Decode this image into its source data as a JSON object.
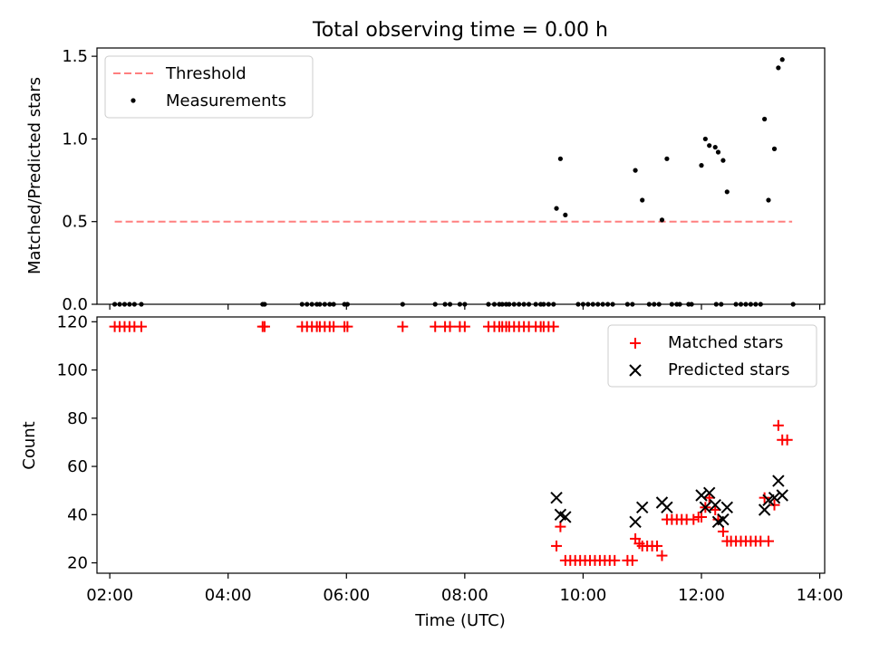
{
  "figure": {
    "title": "Total observing time = 0.00 h"
  },
  "colors": {
    "threshold": "#ff7f7f",
    "measurements": "#000000",
    "matched": "#ff0000",
    "predicted": "#000000"
  },
  "chart_data": [
    {
      "type": "scatter",
      "panel": "top",
      "ylabel": "Matched/Predicted stars",
      "xlabel": "",
      "ylim": [
        0,
        1.55
      ],
      "xlim": [
        "01:47",
        "14:05"
      ],
      "yticks": [
        0.0,
        0.5,
        1.0,
        1.5
      ],
      "yticklabels": [
        "0.0",
        "0.5",
        "1.0",
        "1.5"
      ],
      "grid": false,
      "legend": {
        "position": "upper-left",
        "entries": [
          "Threshold",
          "Measurements"
        ]
      },
      "threshold": {
        "name": "Threshold",
        "y": 0.5,
        "x_start": "02:05",
        "x_end": "13:32",
        "style": "dashed"
      },
      "series": [
        {
          "name": "Measurements",
          "marker": "dot",
          "points": [
            [
              "02:05",
              0
            ],
            [
              "02:10",
              0
            ],
            [
              "02:15",
              0
            ],
            [
              "02:20",
              0
            ],
            [
              "02:25",
              0
            ],
            [
              "02:32",
              0
            ],
            [
              "04:35",
              0
            ],
            [
              "04:37",
              0
            ],
            [
              "05:15",
              0
            ],
            [
              "05:20",
              0
            ],
            [
              "05:25",
              0
            ],
            [
              "05:30",
              0
            ],
            [
              "05:33",
              0
            ],
            [
              "05:38",
              0
            ],
            [
              "05:43",
              0
            ],
            [
              "05:47",
              0
            ],
            [
              "05:58",
              0
            ],
            [
              "06:01",
              0
            ],
            [
              "06:57",
              0
            ],
            [
              "07:30",
              0
            ],
            [
              "07:40",
              0
            ],
            [
              "07:45",
              0
            ],
            [
              "07:55",
              0
            ],
            [
              "08:00",
              0
            ],
            [
              "08:24",
              0
            ],
            [
              "08:30",
              0
            ],
            [
              "08:35",
              0
            ],
            [
              "08:38",
              0
            ],
            [
              "08:42",
              0
            ],
            [
              "08:45",
              0
            ],
            [
              "08:50",
              0
            ],
            [
              "08:55",
              0
            ],
            [
              "09:00",
              0
            ],
            [
              "09:05",
              0
            ],
            [
              "09:12",
              0
            ],
            [
              "09:17",
              0
            ],
            [
              "09:20",
              0
            ],
            [
              "09:25",
              0
            ],
            [
              "09:30",
              0
            ],
            [
              "09:55",
              0
            ],
            [
              "10:00",
              0
            ],
            [
              "10:05",
              0
            ],
            [
              "10:10",
              0
            ],
            [
              "10:15",
              0
            ],
            [
              "10:20",
              0
            ],
            [
              "10:25",
              0
            ],
            [
              "10:30",
              0
            ],
            [
              "10:45",
              0
            ],
            [
              "10:50",
              0
            ],
            [
              "11:07",
              0
            ],
            [
              "11:12",
              0
            ],
            [
              "11:17",
              0
            ],
            [
              "11:30",
              0
            ],
            [
              "11:35",
              0
            ],
            [
              "11:38",
              0
            ],
            [
              "11:47",
              0
            ],
            [
              "11:50",
              0
            ],
            [
              "12:15",
              0
            ],
            [
              "12:20",
              0
            ],
            [
              "12:35",
              0
            ],
            [
              "12:40",
              0
            ],
            [
              "12:45",
              0
            ],
            [
              "12:50",
              0
            ],
            [
              "12:55",
              0
            ],
            [
              "13:00",
              0
            ],
            [
              "13:33",
              0
            ],
            [
              "09:33",
              0.58
            ],
            [
              "09:37",
              0.88
            ],
            [
              "09:42",
              0.54
            ],
            [
              "10:53",
              0.81
            ],
            [
              "11:00",
              0.63
            ],
            [
              "11:20",
              0.51
            ],
            [
              "11:25",
              0.88
            ],
            [
              "12:00",
              0.84
            ],
            [
              "12:04",
              1.0
            ],
            [
              "12:08",
              0.96
            ],
            [
              "12:14",
              0.95
            ],
            [
              "12:17",
              0.92
            ],
            [
              "12:22",
              0.87
            ],
            [
              "12:26",
              0.68
            ],
            [
              "13:04",
              1.12
            ],
            [
              "13:08",
              0.63
            ],
            [
              "13:14",
              0.94
            ],
            [
              "13:18",
              1.43
            ],
            [
              "13:22",
              1.48
            ]
          ]
        }
      ]
    },
    {
      "type": "scatter",
      "panel": "bottom",
      "ylabel": "Count",
      "xlabel": "Time (UTC)",
      "ylim": [
        15.7,
        122
      ],
      "xlim": [
        "01:47",
        "14:05"
      ],
      "yticks": [
        20,
        40,
        60,
        80,
        100,
        120
      ],
      "yticklabels": [
        "20",
        "40",
        "60",
        "80",
        "100",
        "120"
      ],
      "xticks": [
        "02:00",
        "04:00",
        "06:00",
        "08:00",
        "10:00",
        "12:00",
        "14:00"
      ],
      "xticklabels": [
        "02:00",
        "04:00",
        "06:00",
        "08:00",
        "10:00",
        "12:00",
        "14:00"
      ],
      "grid": false,
      "legend": {
        "position": "upper-right",
        "entries": [
          "Matched stars",
          "Predicted stars"
        ]
      },
      "series": [
        {
          "name": "Matched stars",
          "marker": "plus",
          "points": [
            [
              "02:05",
              118
            ],
            [
              "02:10",
              118
            ],
            [
              "02:15",
              118
            ],
            [
              "02:20",
              118
            ],
            [
              "02:25",
              118
            ],
            [
              "02:32",
              118
            ],
            [
              "04:35",
              118
            ],
            [
              "04:37",
              118
            ],
            [
              "05:15",
              118
            ],
            [
              "05:20",
              118
            ],
            [
              "05:25",
              118
            ],
            [
              "05:30",
              118
            ],
            [
              "05:33",
              118
            ],
            [
              "05:38",
              118
            ],
            [
              "05:43",
              118
            ],
            [
              "05:47",
              118
            ],
            [
              "05:58",
              118
            ],
            [
              "06:01",
              118
            ],
            [
              "06:57",
              118
            ],
            [
              "07:30",
              118
            ],
            [
              "07:40",
              118
            ],
            [
              "07:45",
              118
            ],
            [
              "07:55",
              118
            ],
            [
              "08:00",
              118
            ],
            [
              "08:24",
              118
            ],
            [
              "08:30",
              118
            ],
            [
              "08:35",
              118
            ],
            [
              "08:38",
              118
            ],
            [
              "08:42",
              118
            ],
            [
              "08:45",
              118
            ],
            [
              "08:50",
              118
            ],
            [
              "08:55",
              118
            ],
            [
              "09:00",
              118
            ],
            [
              "09:05",
              118
            ],
            [
              "09:12",
              118
            ],
            [
              "09:17",
              118
            ],
            [
              "09:20",
              118
            ],
            [
              "09:25",
              118
            ],
            [
              "09:30",
              118
            ],
            [
              "09:33",
              27
            ],
            [
              "09:37",
              35
            ],
            [
              "09:42",
              21
            ],
            [
              "09:47",
              21
            ],
            [
              "09:52",
              21
            ],
            [
              "09:57",
              21
            ],
            [
              "10:02",
              21
            ],
            [
              "10:07",
              21
            ],
            [
              "10:12",
              21
            ],
            [
              "10:17",
              21
            ],
            [
              "10:22",
              21
            ],
            [
              "10:27",
              21
            ],
            [
              "10:32",
              21
            ],
            [
              "10:45",
              21
            ],
            [
              "10:50",
              21
            ],
            [
              "10:53",
              30
            ],
            [
              "10:57",
              28
            ],
            [
              "11:00",
              27
            ],
            [
              "11:05",
              27
            ],
            [
              "11:10",
              27
            ],
            [
              "11:15",
              27
            ],
            [
              "11:20",
              23
            ],
            [
              "11:25",
              38
            ],
            [
              "11:30",
              38
            ],
            [
              "11:35",
              38
            ],
            [
              "11:40",
              38
            ],
            [
              "11:45",
              38
            ],
            [
              "11:52",
              38
            ],
            [
              "11:57",
              39
            ],
            [
              "12:00",
              39
            ],
            [
              "12:04",
              43
            ],
            [
              "12:08",
              47
            ],
            [
              "12:14",
              42
            ],
            [
              "12:17",
              38
            ],
            [
              "12:22",
              33
            ],
            [
              "12:26",
              29
            ],
            [
              "12:30",
              29
            ],
            [
              "12:35",
              29
            ],
            [
              "12:40",
              29
            ],
            [
              "12:45",
              29
            ],
            [
              "12:50",
              29
            ],
            [
              "12:55",
              29
            ],
            [
              "13:00",
              29
            ],
            [
              "13:04",
              47
            ],
            [
              "13:08",
              29
            ],
            [
              "13:14",
              44
            ],
            [
              "13:18",
              77
            ],
            [
              "13:22",
              71
            ],
            [
              "13:27",
              71
            ]
          ]
        },
        {
          "name": "Predicted stars",
          "marker": "x",
          "points": [
            [
              "09:33",
              47
            ],
            [
              "09:37",
              40
            ],
            [
              "09:42",
              39
            ],
            [
              "10:53",
              37
            ],
            [
              "11:00",
              43
            ],
            [
              "11:20",
              45
            ],
            [
              "11:25",
              43
            ],
            [
              "12:00",
              48
            ],
            [
              "12:04",
              43
            ],
            [
              "12:08",
              49
            ],
            [
              "12:14",
              44
            ],
            [
              "12:17",
              37
            ],
            [
              "12:22",
              38
            ],
            [
              "12:26",
              43
            ],
            [
              "13:04",
              42
            ],
            [
              "13:08",
              46
            ],
            [
              "13:14",
              47
            ],
            [
              "13:18",
              54
            ],
            [
              "13:22",
              48
            ]
          ]
        }
      ]
    }
  ]
}
